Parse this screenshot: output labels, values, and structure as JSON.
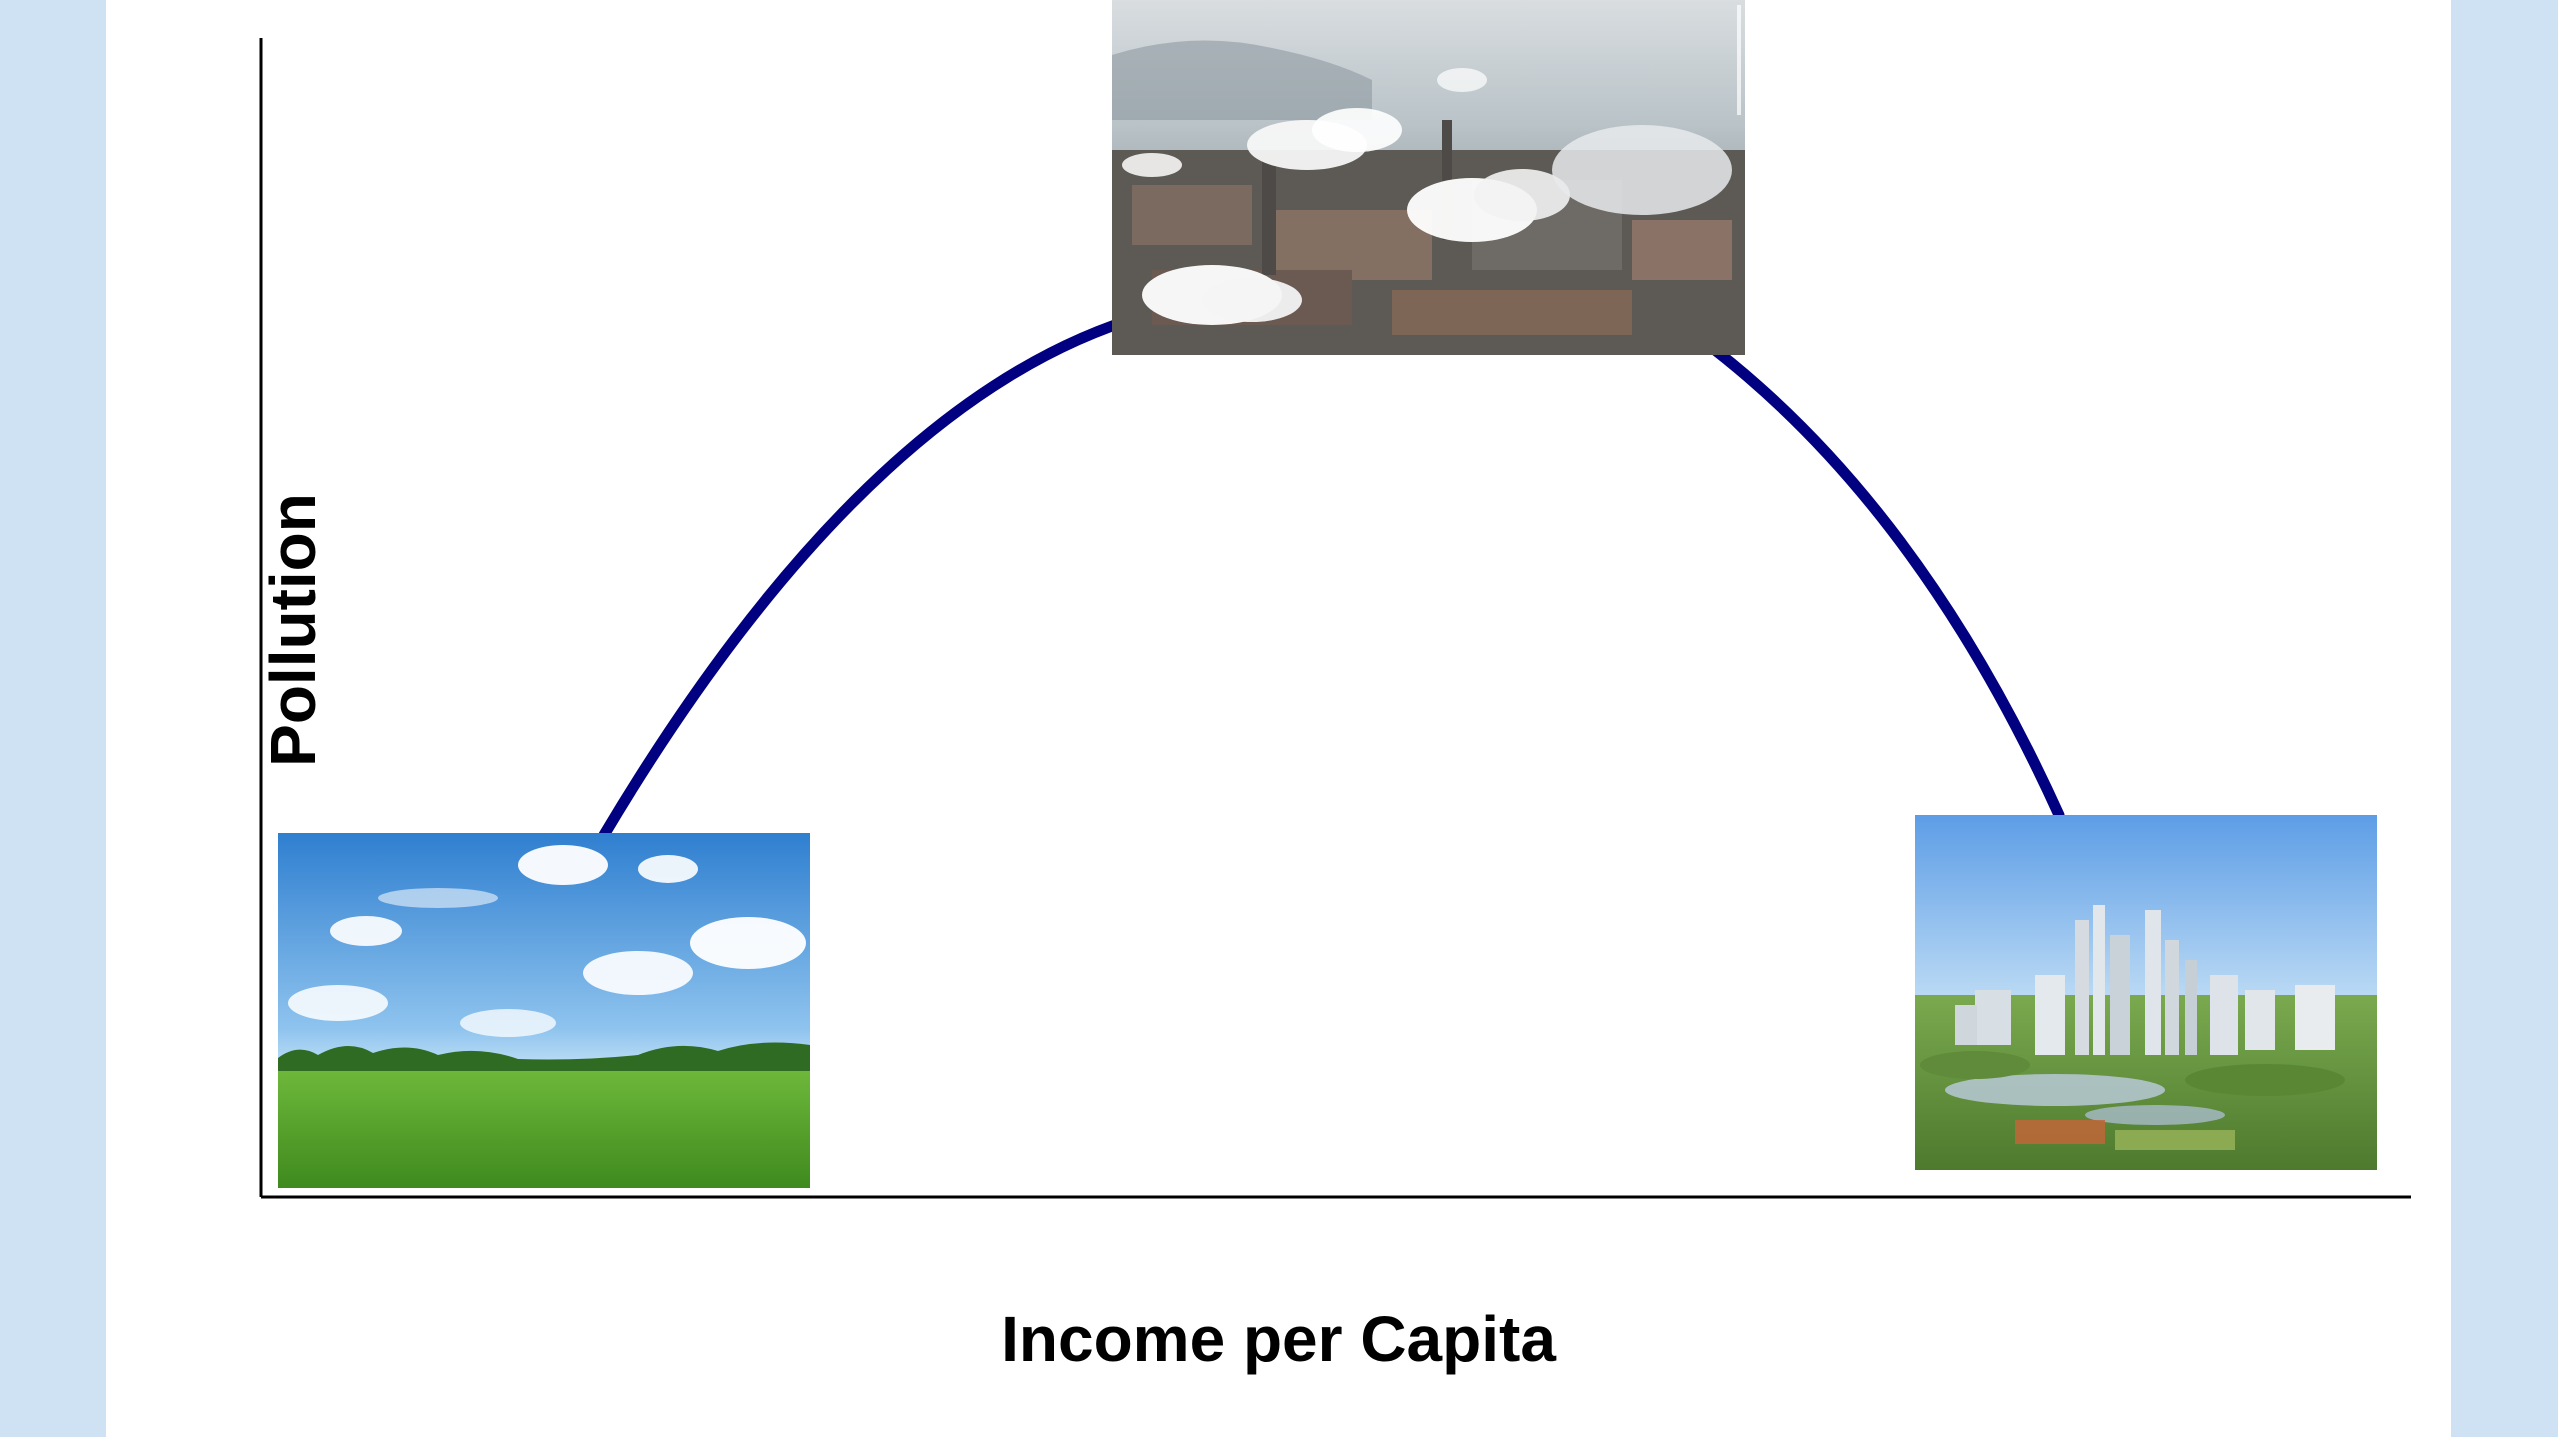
{
  "diagram": {
    "x_axis_label": "Income per Capita",
    "y_axis_label": "Pollution",
    "curve_color": "#000080",
    "axis_color": "#000000",
    "stages": [
      {
        "name": "clean-countryside",
        "description_icon": "green-field-blue-sky"
      },
      {
        "name": "industrial-pollution",
        "description_icon": "smokestack-factory"
      },
      {
        "name": "green-city",
        "description_icon": "modern-green-city"
      }
    ]
  }
}
